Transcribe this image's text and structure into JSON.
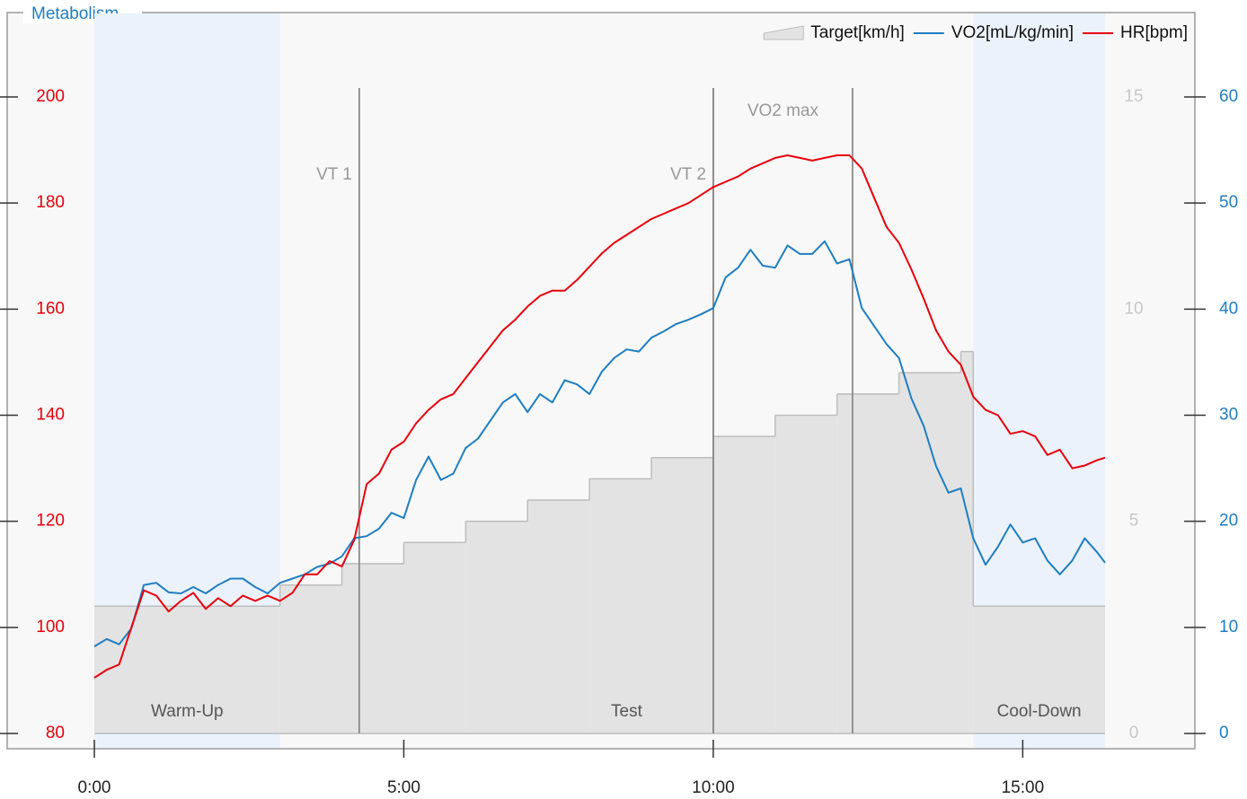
{
  "chart_data": {
    "type": "line",
    "title": "Metabolism",
    "legend": "top-right",
    "xlim": [
      0,
      16.33
    ],
    "xticks": [
      {
        "value": 0,
        "label": "0:00"
      },
      {
        "value": 5,
        "label": "5:00"
      },
      {
        "value": 10,
        "label": "10:00"
      },
      {
        "value": 15,
        "label": "15:00"
      }
    ],
    "ylim": [
      80,
      200
    ],
    "yticks": [
      80,
      100,
      120,
      140,
      160,
      180,
      200
    ],
    "y_color": "#e8000b",
    "y2lim": [
      0,
      60
    ],
    "y2ticks": [
      0,
      10,
      20,
      30,
      40,
      50,
      60
    ],
    "y2_color": "#1f7ec1",
    "y3lim": [
      0,
      15
    ],
    "y3ticks": [
      0,
      5,
      10,
      15
    ],
    "y3_color": "#c8c8c8",
    "x": [
      0,
      0.2,
      0.4,
      0.6,
      0.8,
      1,
      1.2,
      1.4,
      1.6,
      1.8,
      2,
      2.2,
      2.4,
      2.6,
      2.8,
      3,
      3.2,
      3.4,
      3.6,
      3.8,
      4,
      4.2,
      4.4,
      4.6,
      4.8,
      5,
      5.2,
      5.4,
      5.6,
      5.8,
      6,
      6.2,
      6.4,
      6.6,
      6.8,
      7,
      7.2,
      7.4,
      7.6,
      7.8,
      8,
      8.2,
      8.4,
      8.6,
      8.8,
      9,
      9.2,
      9.4,
      9.6,
      9.8,
      10,
      10.2,
      10.4,
      10.6,
      10.8,
      11,
      11.2,
      11.4,
      11.6,
      11.8,
      12,
      12.2,
      12.4,
      12.6,
      12.8,
      13,
      13.2,
      13.4,
      13.6,
      13.8,
      14,
      14.2,
      14.4,
      14.6,
      14.8,
      15,
      15.2,
      15.4,
      15.6,
      15.8,
      16,
      16.2,
      16.33
    ],
    "series": [
      {
        "name": "Target[km/h]",
        "type": "step-area",
        "axis": "y3",
        "color": "#e3e3e3",
        "line_color": "#bdbdbd",
        "x": [
          0,
          3,
          4,
          5,
          6,
          7,
          8,
          9,
          10,
          11,
          12,
          13,
          14,
          14.2
        ],
        "values": [
          3,
          3.5,
          4,
          4.5,
          5,
          5.5,
          6,
          6.5,
          7,
          7.5,
          8,
          8.5,
          9,
          3
        ]
      },
      {
        "name": "VO2[mL/kg/min]",
        "axis": "y2",
        "color": "#1f7ec1",
        "values": [
          8.2,
          8.9,
          8.4,
          9.9,
          14.0,
          14.2,
          13.3,
          13.2,
          13.8,
          13.2,
          14.0,
          14.6,
          14.6,
          13.8,
          13.2,
          14.2,
          14.6,
          15.0,
          15.7,
          16.0,
          16.7,
          18.4,
          18.6,
          19.3,
          20.8,
          20.3,
          23.9,
          26.1,
          23.9,
          24.5,
          26.9,
          27.8,
          29.5,
          31.2,
          32.0,
          30.3,
          32.0,
          31.2,
          33.3,
          32.9,
          32.0,
          34.1,
          35.4,
          36.2,
          36.0,
          37.3,
          37.9,
          38.6,
          39.0,
          39.5,
          40.1,
          43.0,
          43.9,
          45.6,
          44.1,
          43.9,
          46.0,
          45.2,
          45.2,
          46.4,
          44.3,
          44.7,
          40.1,
          38.4,
          36.7,
          35.4,
          31.6,
          29.0,
          25.2,
          22.7,
          23.1,
          18.4,
          15.9,
          17.6,
          19.7,
          18.0,
          18.4,
          16.3,
          15.0,
          16.3,
          18.4,
          17.1,
          16.1
        ]
      },
      {
        "name": "HR[bpm]",
        "color": "#e8000b",
        "values": [
          90.5,
          92,
          93,
          100,
          107,
          106,
          103,
          105,
          106.5,
          103.5,
          105.5,
          104,
          106,
          105,
          106,
          105,
          106.5,
          110,
          110,
          112.5,
          111.5,
          116.5,
          127,
          129,
          133.5,
          135,
          138.5,
          141,
          143,
          144,
          147,
          150,
          153,
          156,
          158,
          160.5,
          162.5,
          163.5,
          163.5,
          165.5,
          168,
          170.5,
          172.5,
          174,
          175.5,
          177,
          178,
          179,
          180,
          181.5,
          183,
          184,
          185,
          186.5,
          187.5,
          188.5,
          189,
          188.5,
          188,
          188.5,
          189,
          189,
          186.5,
          181,
          175.5,
          172.5,
          167.5,
          162,
          156,
          152,
          149.5,
          143.5,
          141,
          140,
          136.5,
          137,
          136,
          132.5,
          133.5,
          130,
          130.5,
          131.5,
          132
        ]
      }
    ],
    "phases": [
      {
        "label": "Warm-Up",
        "start": 0,
        "end": 3,
        "shaded": true
      },
      {
        "label": "Test",
        "start": 3,
        "end": 14.2,
        "shaded": false
      },
      {
        "label": "Cool-Down",
        "start": 14.2,
        "end": 16.33,
        "shaded": true
      }
    ],
    "markers": [
      {
        "label": "VT 1",
        "x": [
          4.28
        ]
      },
      {
        "label": "VT 2",
        "x": [
          10.0
        ]
      },
      {
        "label": "VO2 max",
        "x": [
          10.0,
          12.25
        ]
      }
    ]
  }
}
